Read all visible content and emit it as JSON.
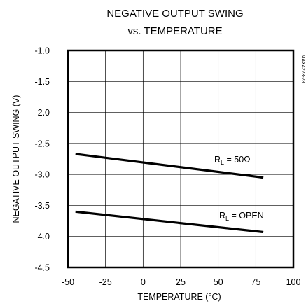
{
  "chart_data": {
    "type": "line",
    "title_line1": "NEGATIVE OUTPUT SWING",
    "title_line2": "vs. TEMPERATURE",
    "xlabel": "TEMPERATURE (°C)",
    "ylabel": "NEGATIVE OUTPUT SWING (V)",
    "xlim": [
      -50,
      100
    ],
    "ylim": [
      -4.5,
      -1.0
    ],
    "x_ticks": [
      "-50",
      "-25",
      "0",
      "25",
      "50",
      "75",
      "100"
    ],
    "y_ticks": [
      "-1.0",
      "-1.5",
      "-2.0",
      "-2.5",
      "-3.0",
      "-3.5",
      "-4.0",
      "-4.5"
    ],
    "x_tick_values": [
      -50,
      -25,
      0,
      25,
      50,
      75,
      100
    ],
    "y_tick_values": [
      -1.0,
      -1.5,
      -2.0,
      -2.5,
      -3.0,
      -3.5,
      -4.0,
      -4.5
    ],
    "grid": true,
    "series": [
      {
        "label_main": "R",
        "label_sub": "L",
        "label_rest": " = 50Ω",
        "x": [
          -45,
          80
        ],
        "y": [
          -2.67,
          -3.05
        ]
      },
      {
        "label_main": "R",
        "label_sub": "L",
        "label_rest": " = OPEN",
        "x": [
          -45,
          80
        ],
        "y": [
          -3.6,
          -3.93
        ]
      }
    ],
    "part_number": "MAX4223-28"
  }
}
